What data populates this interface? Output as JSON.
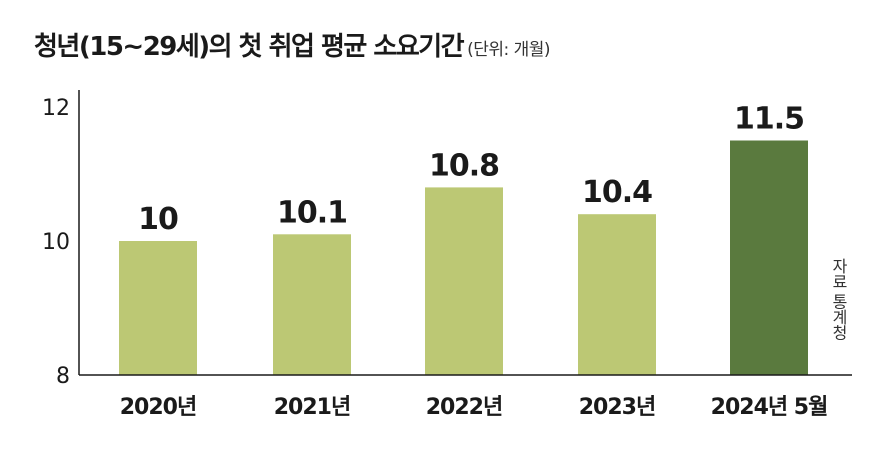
{
  "title": "청년(15~29세)의 첫 취업 평균 소요기간",
  "unit_note": "(단위: 개월)",
  "source_note": "자료 통계청",
  "chart_data": {
    "type": "bar",
    "title": "청년(15~29세)의 첫 취업 평균 소요기간",
    "unit": "(단위: 개월)",
    "categories": [
      "2020년",
      "2021년",
      "2022년",
      "2023년",
      "2024년 5월"
    ],
    "values": [
      10,
      10.1,
      10.8,
      10.4,
      11.5
    ],
    "value_labels": [
      "10",
      "10.1",
      "10.8",
      "10.4",
      "11.5"
    ],
    "y_ticks": [
      "8",
      "10",
      "12"
    ],
    "ylim": [
      8,
      12
    ],
    "grid": false,
    "colors": {
      "bar": "#bcc874",
      "highlight": "#5a7a3e",
      "axis": "#1a1a1a"
    },
    "highlight_index": 4
  }
}
